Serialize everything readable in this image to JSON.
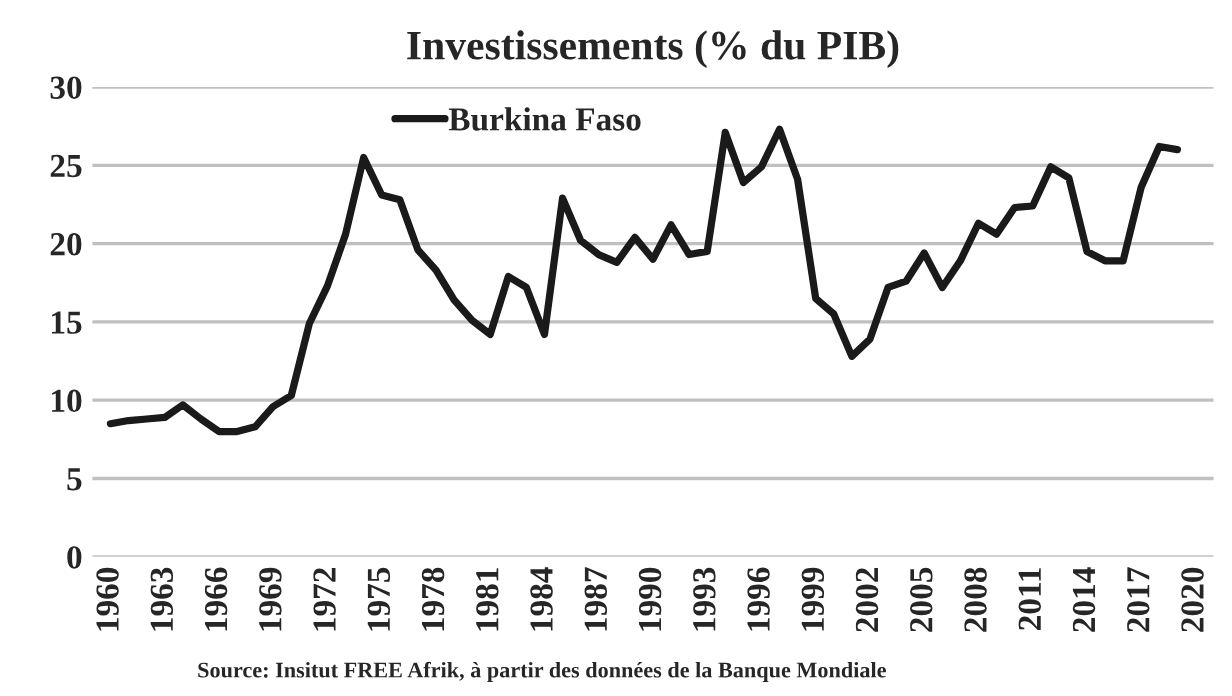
{
  "chart_data": {
    "type": "line",
    "title": "Investissements (% du PIB)",
    "x": [
      1960,
      1961,
      1962,
      1963,
      1964,
      1965,
      1966,
      1967,
      1968,
      1969,
      1970,
      1971,
      1972,
      1973,
      1974,
      1975,
      1976,
      1977,
      1978,
      1979,
      1980,
      1981,
      1982,
      1983,
      1984,
      1985,
      1986,
      1987,
      1988,
      1989,
      1990,
      1991,
      1992,
      1993,
      1994,
      1995,
      1996,
      1997,
      1998,
      1999,
      2000,
      2001,
      2002,
      2003,
      2004,
      2005,
      2006,
      2007,
      2008,
      2009,
      2010,
      2011,
      2012,
      2013,
      2014,
      2015,
      2016,
      2017,
      2018,
      2019
    ],
    "series": [
      {
        "name": "Burkina Faso",
        "color": "#1a1a1a",
        "values": [
          8.5,
          8.7,
          8.8,
          8.9,
          9.7,
          8.8,
          8.0,
          8.0,
          8.3,
          9.6,
          10.3,
          14.9,
          17.3,
          20.6,
          25.5,
          23.1,
          22.8,
          19.6,
          18.3,
          16.4,
          15.1,
          14.2,
          17.9,
          17.2,
          14.2,
          22.9,
          20.2,
          19.3,
          18.8,
          20.4,
          19.0,
          21.2,
          19.3,
          19.5,
          27.1,
          23.9,
          24.9,
          27.3,
          24.1,
          16.5,
          15.5,
          12.8,
          13.9,
          17.2,
          17.6,
          19.4,
          17.2,
          18.9,
          21.3,
          20.6,
          22.3,
          22.4,
          24.9,
          24.2,
          19.5,
          18.9,
          18.9,
          23.6,
          26.2,
          26.0
        ]
      }
    ],
    "xlim": [
      1959,
      2021
    ],
    "xticks": [
      1960,
      1963,
      1966,
      1969,
      1972,
      1975,
      1978,
      1981,
      1984,
      1987,
      1990,
      1993,
      1996,
      1999,
      2002,
      2005,
      2008,
      2011,
      2014,
      2017,
      2020
    ],
    "ylim": [
      0,
      30
    ],
    "yticks": [
      0,
      5,
      10,
      15,
      20,
      25,
      30
    ],
    "grid": "y",
    "legend": "top",
    "marker": "none",
    "line_style": "solid",
    "annotations": [
      "Source: Insitut FREE Afrik, à partir des données de la Banque Mondiale"
    ]
  }
}
